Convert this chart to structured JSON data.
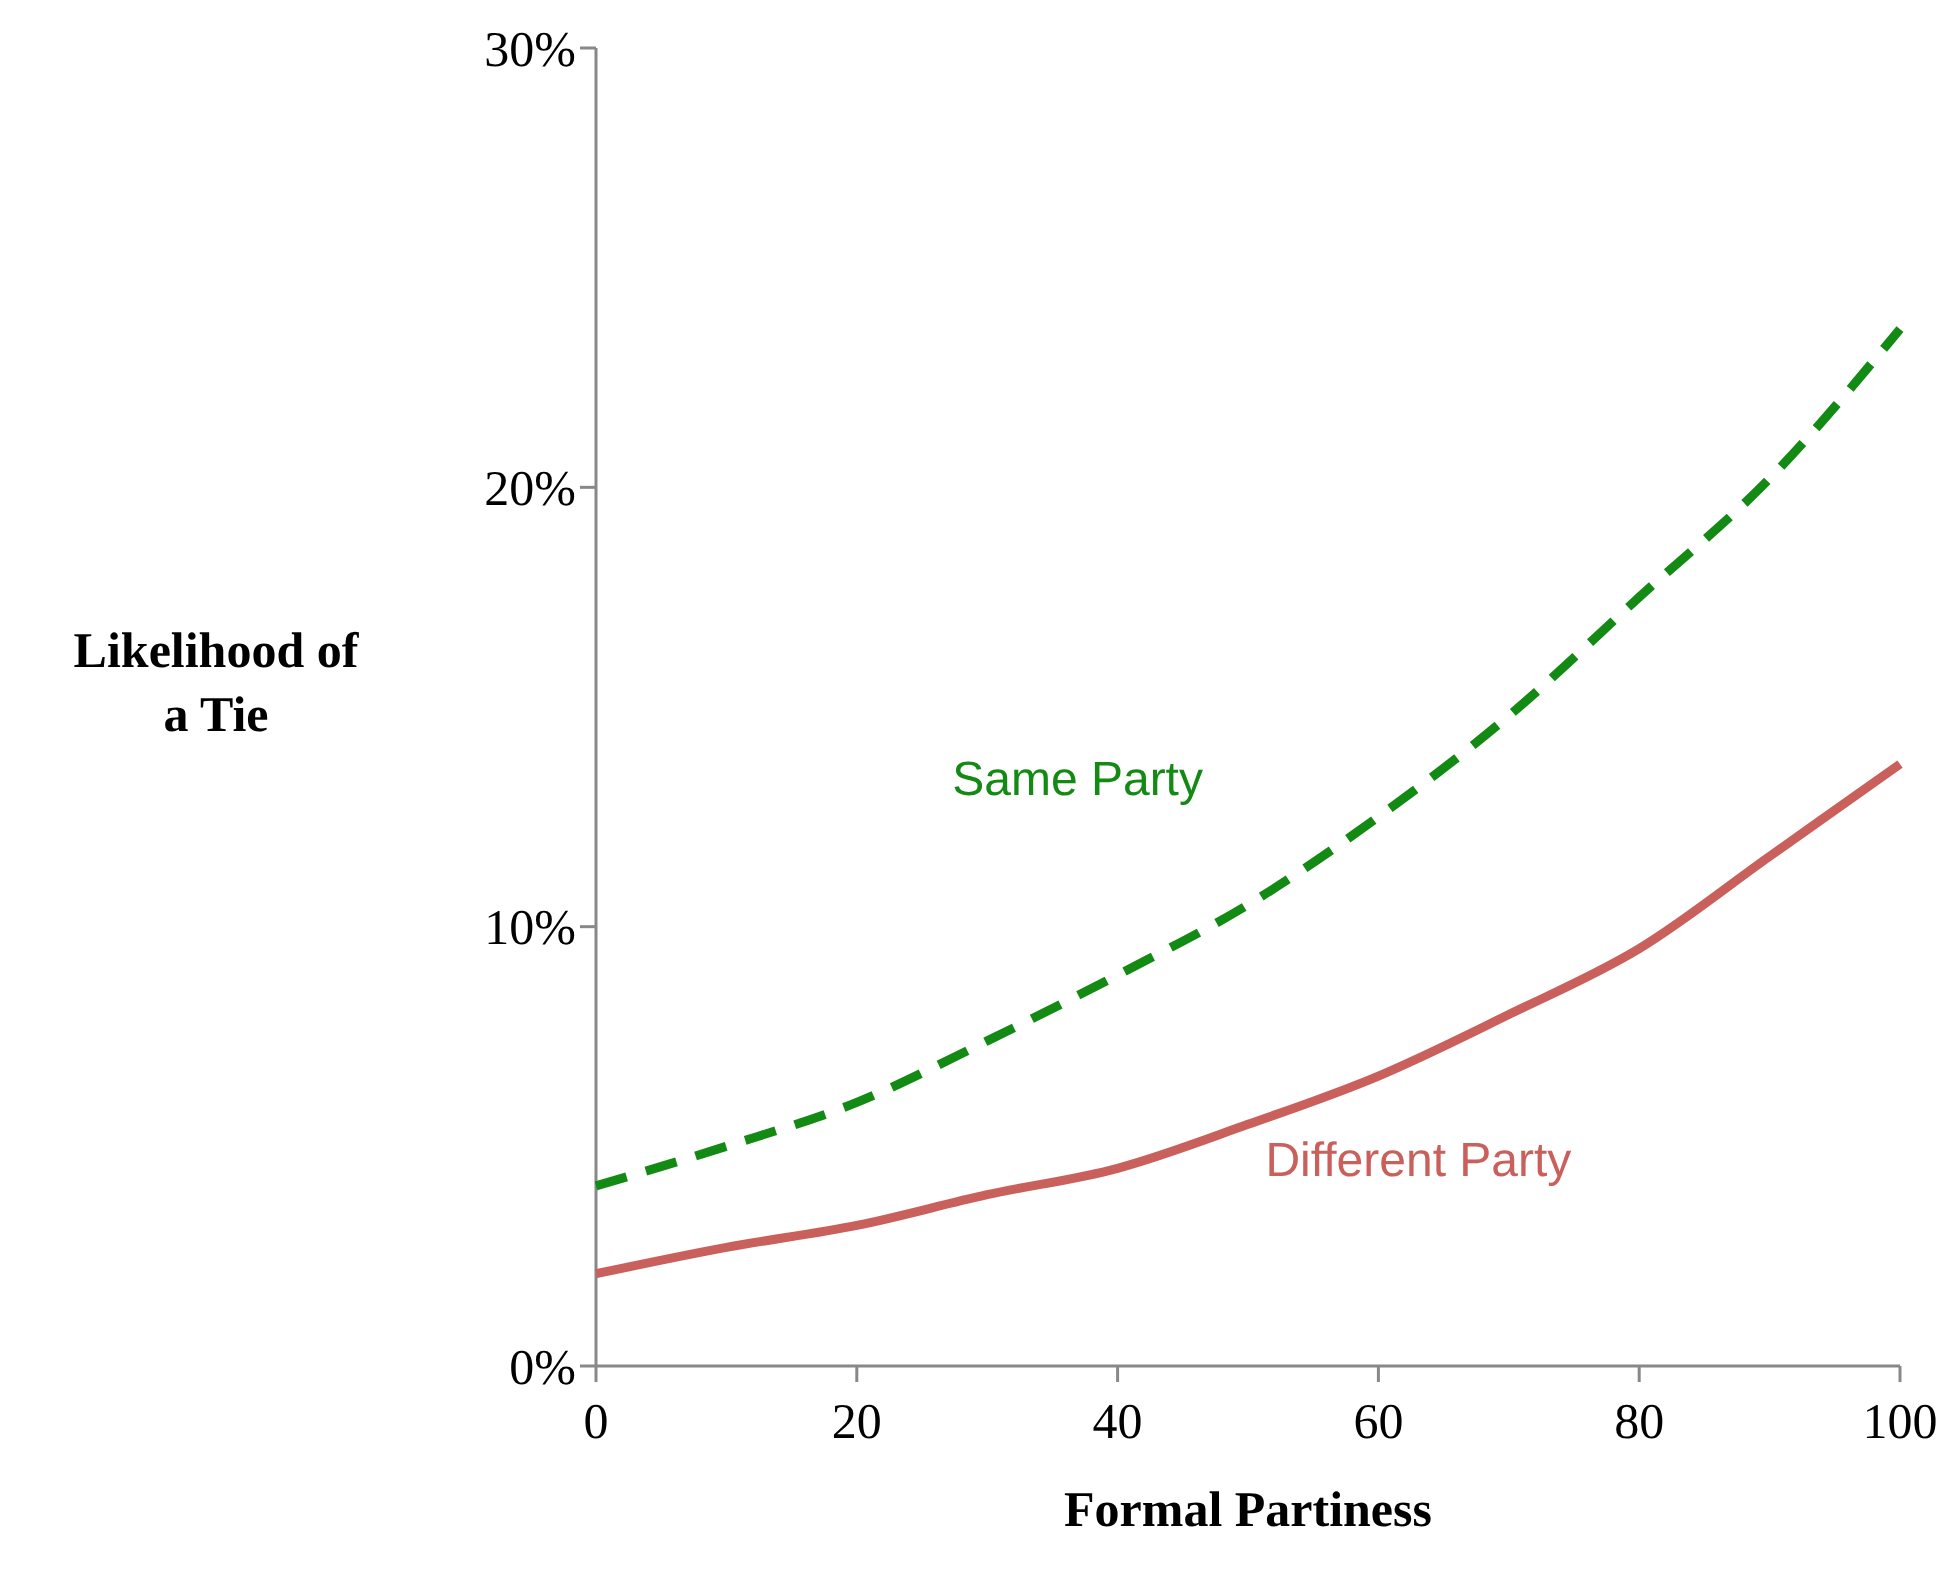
{
  "chart_data": {
    "type": "line",
    "xlabel": "Formal Partiness",
    "ylabel": "Likelihood of a Tie",
    "x": [
      0,
      10,
      20,
      30,
      40,
      50,
      60,
      70,
      80,
      90,
      100
    ],
    "series": [
      {
        "name": "Same Party",
        "color": "#138a13",
        "line_style": "dashed",
        "values": [
          4.1,
          5.0,
          6.0,
          7.4,
          8.9,
          10.5,
          12.5,
          14.8,
          17.5,
          20.2,
          23.6
        ]
      },
      {
        "name": "Different Party",
        "color": "#c9605c",
        "line_style": "solid",
        "values": [
          2.1,
          2.7,
          3.2,
          3.9,
          4.5,
          5.5,
          6.6,
          8.0,
          9.5,
          11.6,
          13.7
        ]
      }
    ],
    "xlim": [
      0,
      100
    ],
    "xticks": [
      0,
      20,
      40,
      60,
      80,
      100
    ],
    "ylim": [
      0,
      30
    ],
    "yticks": [
      {
        "value": 0,
        "label": "0%"
      },
      {
        "value": 10,
        "label": "10%"
      },
      {
        "value": 20,
        "label": "20%"
      },
      {
        "value": 30,
        "label": "30%"
      }
    ],
    "grid": false,
    "marker": "none"
  }
}
